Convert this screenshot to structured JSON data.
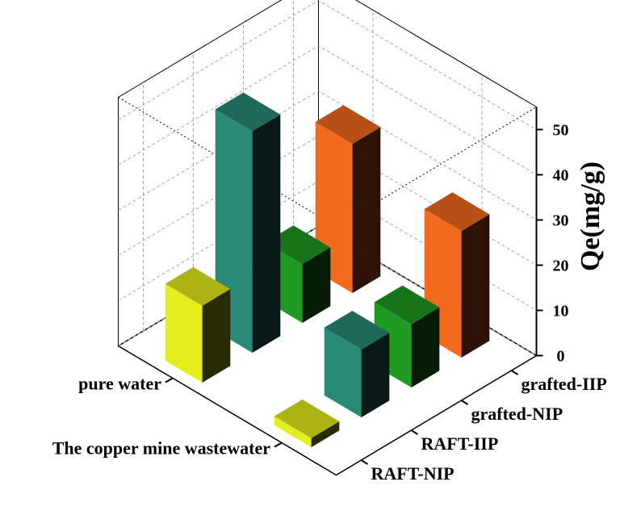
{
  "chart_data": {
    "type": "bar3d",
    "categories": [
      "RAFT-NIP",
      "RAFT-IIP",
      "grafted-NIP",
      "grafted-IIP"
    ],
    "colors": [
      "#e4ee1c",
      "#2a8a78",
      "#1f9a22",
      "#f26a1e"
    ],
    "series": [
      {
        "name": "pure water",
        "values": [
          17,
          49,
          13,
          33
        ]
      },
      {
        "name": "The copper mine wastewater",
        "values": [
          2,
          15,
          14,
          28
        ]
      }
    ],
    "zlabel": "Qe(mg/g)",
    "zlim": [
      0,
      55
    ],
    "zticks": [
      0,
      10,
      20,
      30,
      40,
      50
    ],
    "grid": true
  }
}
